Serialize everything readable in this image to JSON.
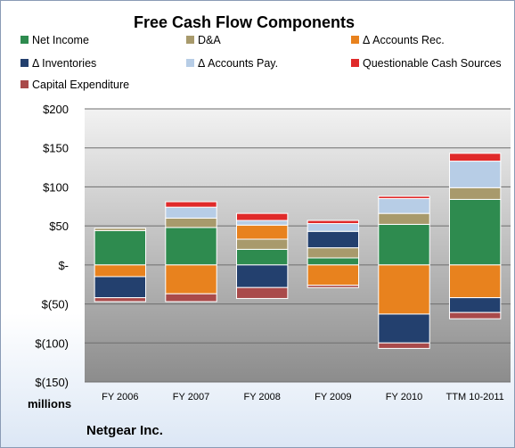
{
  "company": "Netgear Inc.",
  "chart_data": {
    "type": "bar",
    "stacked": true,
    "title": "Free Cash Flow Components",
    "units_label": "millions",
    "categories": [
      "FY 2006",
      "FY 2007",
      "FY 2008",
      "FY 2009",
      "FY 2010",
      "TTM 10-2011"
    ],
    "ylim": [
      -150,
      200
    ],
    "yticks": [
      200,
      150,
      100,
      50,
      0,
      -50,
      -100,
      -150
    ],
    "ytick_labels": [
      "$200",
      "$150",
      "$100",
      "$50",
      "$-",
      "$(50)",
      "$(100)",
      "$(150)"
    ],
    "grid": true,
    "legend_position": "top",
    "series": [
      {
        "name": "Net Income",
        "color": "#2e8b4f",
        "values": [
          44,
          48,
          20,
          9,
          52,
          84
        ]
      },
      {
        "name": "D&A",
        "color": "#a89a6c",
        "values": [
          3,
          12,
          13,
          13,
          14,
          15
        ]
      },
      {
        "name": "Δ Accounts Rec.",
        "color": "#e8821e",
        "values": [
          -15,
          -37,
          18,
          -26,
          -63,
          -42
        ]
      },
      {
        "name": "Δ Inventories",
        "color": "#23406e",
        "values": [
          -27,
          0,
          -29,
          21,
          -37,
          -19
        ]
      },
      {
        "name": "Δ Accounts Pay.",
        "color": "#b7cde6",
        "values": [
          0,
          14,
          6,
          10,
          19,
          34
        ]
      },
      {
        "name": "Questionable Cash Sources",
        "color": "#e02a2a",
        "values": [
          0,
          7,
          9,
          4,
          3,
          10
        ]
      },
      {
        "name": "Capital Expenditure",
        "color": "#a94a4a",
        "values": [
          -5,
          -10,
          -14,
          -3,
          -7,
          -8
        ]
      }
    ]
  }
}
